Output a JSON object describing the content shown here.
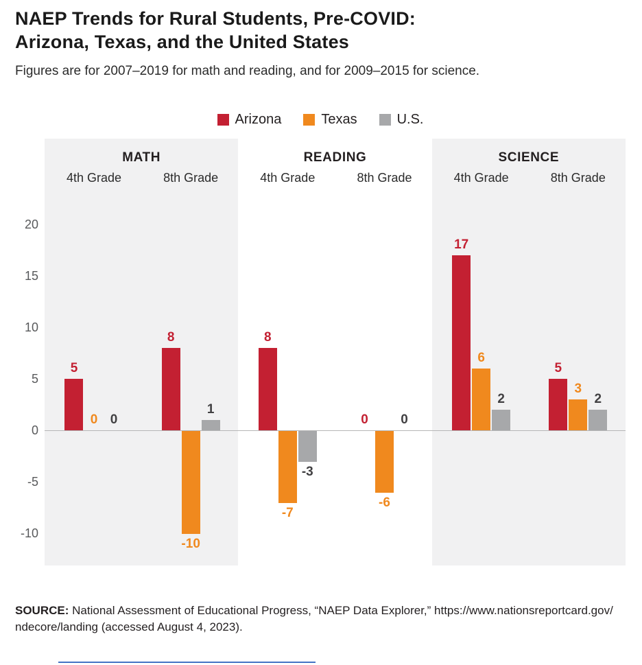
{
  "title": {
    "line1": "NAEP Trends for Rural Students, Pre-COVID:",
    "line2": "Arizona, Texas, and the United States"
  },
  "subtitle": "Figures are for 2007–2019 for math and reading, and for 2009–2015 for science.",
  "source": {
    "label": "SOURCE:",
    "line1": "National Assessment of Educational Progress, “NAEP Data Explorer,” https://www.nationsreportcard.gov/",
    "line2": "ndecore/landing (accessed August 4, 2023)."
  },
  "chart_data": {
    "type": "bar",
    "title": "NAEP Trends for Rural Students, Pre-COVID: Arizona, Texas, and the United States",
    "subtitle": "Figures are for 2007–2019 for math and reading, and for 2009–2015 for science.",
    "grid": false,
    "legend_position": "top",
    "ylim": [
      -13,
      23
    ],
    "y_ticks": [
      20,
      15,
      10,
      5,
      0,
      -5,
      -10
    ],
    "series_names": [
      "Arizona",
      "Texas",
      "U.S."
    ],
    "series_colors": [
      "#c32032",
      "#f0891e",
      "#a7a8aa"
    ],
    "label_colors": [
      "#c32032",
      "#f0891e",
      "#414042"
    ],
    "shaded_panel_color": "#f1f1f2",
    "panels": [
      {
        "label": "MATH",
        "shaded": true,
        "groups": [
          {
            "label": "4th Grade",
            "values": [
              5,
              0,
              0
            ]
          },
          {
            "label": "8th Grade",
            "values": [
              8,
              -10,
              1
            ]
          }
        ]
      },
      {
        "label": "READING",
        "shaded": false,
        "groups": [
          {
            "label": "4th Grade",
            "values": [
              8,
              -7,
              -3
            ]
          },
          {
            "label": "8th Grade",
            "values": [
              0,
              -6,
              0
            ]
          }
        ]
      },
      {
        "label": "SCIENCE",
        "shaded": true,
        "groups": [
          {
            "label": "4th Grade",
            "values": [
              17,
              6,
              2
            ]
          },
          {
            "label": "8th Grade",
            "values": [
              5,
              3,
              2
            ]
          }
        ]
      }
    ]
  }
}
